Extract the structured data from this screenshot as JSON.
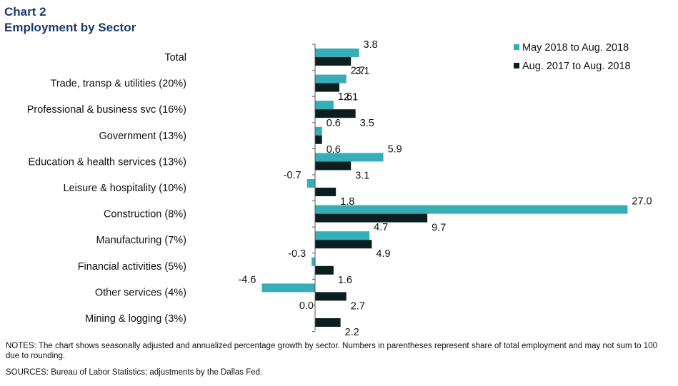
{
  "title": {
    "line1": "Chart 2",
    "line2": "Employment by Sector"
  },
  "notes": "NOTES: The chart shows seasonally adjusted and annualized percentage growth by sector. Numbers in parentheses represent share of total employment and may not sum to 100 due to rounding.",
  "sources": "SOURCES: Bureau of Labor Statistics; adjustments by the Dallas Fed.",
  "chart_data": {
    "type": "bar",
    "orientation": "horizontal",
    "title": "Employment by Sector",
    "categories": [
      "Total",
      "Trade, transp & utilities (20%)",
      "Professional & business svc (16%)",
      "Government (13%)",
      "Education & health services (13%)",
      "Leisure & hospitality (10%)",
      "Construction (8%)",
      "Manufacturing (7%)",
      "Financial activities (5%)",
      "Other services (4%)",
      "Mining & logging (3%)"
    ],
    "series": [
      {
        "name": "May 2018 to Aug. 2018",
        "color": "#36aeb8",
        "values": [
          3.8,
          2.7,
          1.6,
          0.6,
          5.9,
          -0.7,
          27.0,
          4.7,
          -0.3,
          -4.6,
          0.0
        ],
        "labels": [
          "3.8",
          "2.7",
          "1.6",
          "0.6",
          "5.9",
          "-0.7",
          "27.0",
          "4.7",
          "-0.3",
          "-4.6",
          "0.0"
        ]
      },
      {
        "name": "Aug. 2017 to Aug. 2018",
        "color": "#0b1e20",
        "values": [
          3.1,
          2.1,
          3.5,
          0.6,
          3.1,
          1.8,
          9.7,
          4.9,
          1.6,
          2.7,
          2.2
        ],
        "labels": [
          "3.1",
          "2.1",
          "3.5",
          "0.6",
          "3.1",
          "1.8",
          "9.7",
          "4.9",
          "1.6",
          "2.7",
          "2.2"
        ]
      }
    ],
    "xlim": [
      -4.6,
      27.0
    ],
    "grid": false,
    "legend": "top-right"
  }
}
